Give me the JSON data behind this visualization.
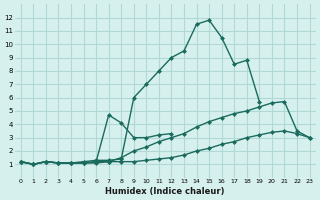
{
  "xlabel": "Humidex (Indice chaleur)",
  "background_color": "#d6f0ee",
  "grid_color": "#b0d8d4",
  "line_color": "#1a6b5e",
  "x_values": [
    0,
    1,
    2,
    3,
    4,
    5,
    6,
    7,
    8,
    9,
    10,
    11,
    12,
    13,
    14,
    15,
    16,
    17,
    18,
    19,
    20,
    21,
    22,
    23
  ],
  "series": [
    [
      1.2,
      1.0,
      1.2,
      1.1,
      1.1,
      1.1,
      1.1,
      1.2,
      1.2,
      1.2,
      1.3,
      1.4,
      1.5,
      1.7,
      2.0,
      2.2,
      2.5,
      2.7,
      3.0,
      3.2,
      3.4,
      3.5,
      3.3,
      3.0
    ],
    [
      1.2,
      1.0,
      1.2,
      1.1,
      1.1,
      1.1,
      1.2,
      1.2,
      1.5,
      2.0,
      2.3,
      2.7,
      3.0,
      3.3,
      3.8,
      4.2,
      4.5,
      4.8,
      5.0,
      5.3,
      5.6,
      5.7,
      3.5,
      3.0
    ],
    [
      1.2,
      1.0,
      1.2,
      1.1,
      1.1,
      1.1,
      1.2,
      4.7,
      4.1,
      3.0,
      3.0,
      3.2,
      3.3,
      null,
      null,
      null,
      null,
      null,
      null,
      null,
      null,
      null,
      null,
      null
    ],
    [
      1.2,
      1.0,
      1.2,
      1.1,
      1.1,
      1.2,
      1.3,
      1.3,
      1.4,
      6.0,
      7.0,
      8.0,
      9.0,
      9.5,
      11.5,
      11.8,
      10.5,
      8.5,
      8.8,
      5.7,
      null,
      null,
      null,
      null
    ]
  ],
  "ylim": [
    0,
    13
  ],
  "xlim": [
    -0.5,
    23.5
  ],
  "yticks": [
    1,
    2,
    3,
    4,
    5,
    6,
    7,
    8,
    9,
    10,
    11,
    12
  ],
  "xticks": [
    0,
    1,
    2,
    3,
    4,
    5,
    6,
    7,
    8,
    9,
    10,
    11,
    12,
    13,
    14,
    15,
    16,
    17,
    18,
    19,
    20,
    21,
    22,
    23
  ]
}
